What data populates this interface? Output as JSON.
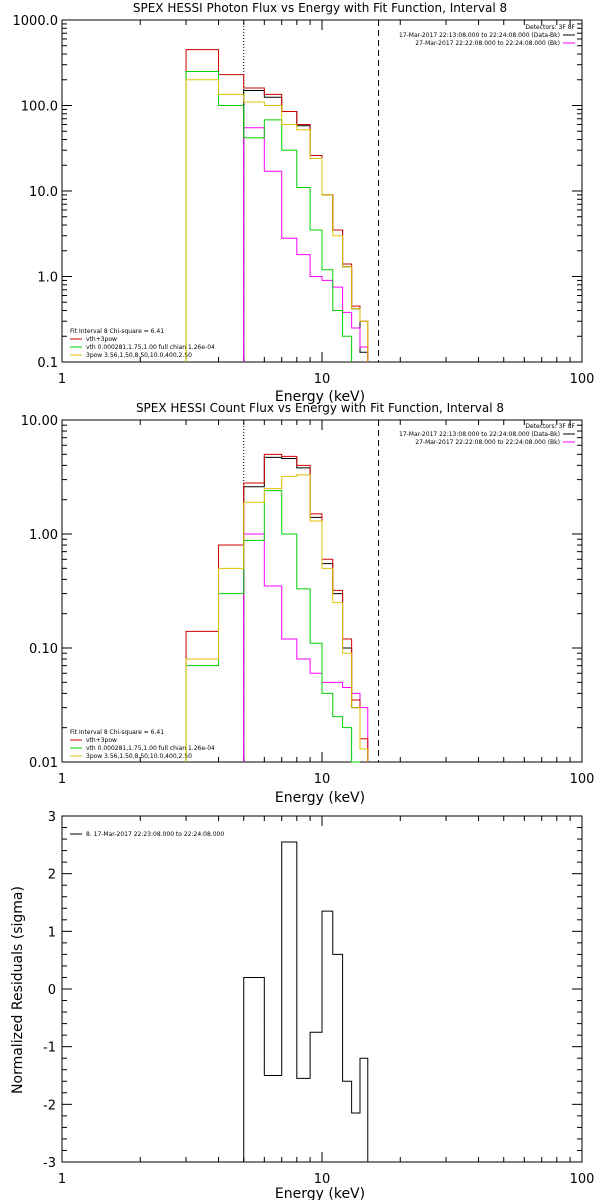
{
  "colors": {
    "data": "#000000",
    "total": "#d00000",
    "thermal": "#00d000",
    "power": "#e0c000",
    "background": "#ff00ff",
    "axes": "#000000"
  },
  "chart_data": [
    {
      "type": "line",
      "title": "SPEX HESSI Photon Flux vs Energy with Fit Function, Interval 8",
      "xlabel": "Energy (keV)",
      "ylabel": "",
      "xscale": "log",
      "yscale": "log",
      "xlim": [
        1,
        100
      ],
      "ylim": [
        0.1,
        1000
      ],
      "x_ticks": [
        "1",
        "10",
        "100"
      ],
      "y_ticks": [
        "0.1",
        "1.0",
        "10.0",
        "100.0",
        "1000.0"
      ],
      "energy_bins": [
        3.0,
        4.0,
        5.0,
        6.0,
        7.0,
        8.0,
        9.0,
        10.0,
        11.0,
        12.0,
        13.0,
        14.0,
        15.0,
        16.5
      ],
      "vlines": [
        {
          "x": 5.0,
          "style": "dotted"
        },
        {
          "x": 16.5,
          "style": "dashed"
        }
      ],
      "header_lines": [
        "Detectors: 3F 8F",
        "17-Mar-2017 22:13:08.000 to 22:24:08.000 (Data-Bk)",
        "27-Mar-2017 22:22:08.000 to 22:24:08.000 (Bk)"
      ],
      "fit_lines": [
        "Fit Interval 8   Chi-square = 6.41",
        "vth+3pow",
        "vth 0.000281,1.75,1.00  full chian 1.26e-04",
        "3pow 3.56,1.50,8.50,10.0,400,2.50"
      ],
      "series": [
        {
          "name": "Data-Bk",
          "color": "#000000",
          "values": [
            null,
            null,
            150,
            125,
            85,
            58,
            26,
            9.0,
            3.5,
            1.3,
            0.42,
            0.13
          ]
        },
        {
          "name": "Bk",
          "color": "#ff00ff",
          "values": [
            null,
            null,
            55,
            17,
            2.8,
            1.8,
            1.0,
            0.9,
            0.75,
            0.38,
            0.25,
            0.15
          ]
        },
        {
          "name": "vth+3pow",
          "color": "#d00000",
          "values": [
            450,
            230,
            160,
            135,
            85,
            60,
            26,
            9.0,
            3.5,
            1.4,
            0.45,
            0.3
          ]
        },
        {
          "name": "vth",
          "color": "#00d000",
          "values": [
            250,
            100,
            42,
            68,
            30,
            11,
            3.5,
            1.2,
            0.4,
            0.2,
            null,
            null
          ]
        },
        {
          "name": "3pow",
          "color": "#e0c000",
          "values": [
            200,
            135,
            110,
            100,
            60,
            52,
            24,
            9.0,
            3.0,
            1.3,
            0.42,
            0.3
          ]
        }
      ]
    },
    {
      "type": "line",
      "title": "SPEX HESSI Count Flux vs Energy with Fit Function, Interval 8",
      "xlabel": "Energy (keV)",
      "ylabel": "",
      "xscale": "log",
      "yscale": "log",
      "xlim": [
        1,
        100
      ],
      "ylim": [
        0.01,
        10
      ],
      "x_ticks": [
        "1",
        "10",
        "100"
      ],
      "y_ticks": [
        "0.01",
        "0.10",
        "1.00",
        "10.00"
      ],
      "energy_bins": [
        3.0,
        4.0,
        5.0,
        6.0,
        7.0,
        8.0,
        9.0,
        10.0,
        11.0,
        12.0,
        13.0,
        14.0,
        15.0,
        16.5
      ],
      "vlines": [
        {
          "x": 5.0,
          "style": "dotted"
        },
        {
          "x": 16.5,
          "style": "dashed"
        }
      ],
      "header_lines": [
        "Detectors: 3F 8F",
        "17-Mar-2017 22:13:08.000 to 22:24:08.000 (Data-Bk)",
        "27-Mar-2017 22:22:08.000 to 22:24:08.000 (Bk)"
      ],
      "fit_lines": [
        "Fit Interval 8   Chi-square = 6.41",
        "vth+3pow",
        "vth 0.000281,1.75,1.00  full chian 1.26e-04",
        "3pow 3.56,1.50,8.50,10.0,400,2.50"
      ],
      "series": [
        {
          "name": "Data-Bk",
          "color": "#000000",
          "values": [
            null,
            null,
            2.6,
            4.7,
            4.6,
            3.8,
            1.4,
            0.55,
            0.3,
            0.1,
            0.03,
            0.013
          ]
        },
        {
          "name": "Bk",
          "color": "#ff00ff",
          "values": [
            null,
            null,
            1.0,
            0.35,
            0.12,
            0.08,
            0.06,
            0.05,
            0.05,
            0.045,
            0.04,
            0.03
          ]
        },
        {
          "name": "vth+3pow",
          "color": "#d00000",
          "values": [
            0.14,
            0.8,
            2.8,
            5.0,
            4.8,
            4.0,
            1.5,
            0.6,
            0.32,
            0.12,
            0.035,
            0.016
          ]
        },
        {
          "name": "vth",
          "color": "#00d000",
          "values": [
            0.07,
            0.3,
            0.88,
            2.4,
            1.0,
            0.33,
            0.11,
            0.04,
            0.025,
            0.02,
            0.01,
            null
          ]
        },
        {
          "name": "3pow",
          "color": "#e0c000",
          "values": [
            0.08,
            0.5,
            1.9,
            2.5,
            3.2,
            3.3,
            1.3,
            0.5,
            0.25,
            0.09,
            0.03,
            0.013
          ]
        }
      ]
    },
    {
      "type": "line",
      "title": "",
      "xlabel": "Energy (keV)",
      "ylabel": "Normalized Residuals (sigma)",
      "xscale": "log",
      "yscale": "linear",
      "xlim": [
        1,
        100
      ],
      "ylim": [
        -3,
        3
      ],
      "x_ticks": [
        "1",
        "10",
        "100"
      ],
      "y_ticks": [
        "-3",
        "-2",
        "-1",
        "0",
        "1",
        "2",
        "3"
      ],
      "energy_bins": [
        5.0,
        6.0,
        7.0,
        8.0,
        9.0,
        10.0,
        11.0,
        12.0,
        13.0,
        14.0,
        15.0,
        16.5
      ],
      "legend": "8. 17-Mar-2017 22:23:08.000 to 22:24:08.000",
      "series": [
        {
          "name": "8. 17-Mar-2017 22:23:08.000 to 22:24:08.000",
          "color": "#000000",
          "values": [
            0.2,
            -1.5,
            2.55,
            -1.55,
            -0.75,
            1.35,
            0.6,
            -1.6,
            -2.15,
            -1.2
          ]
        }
      ]
    }
  ]
}
